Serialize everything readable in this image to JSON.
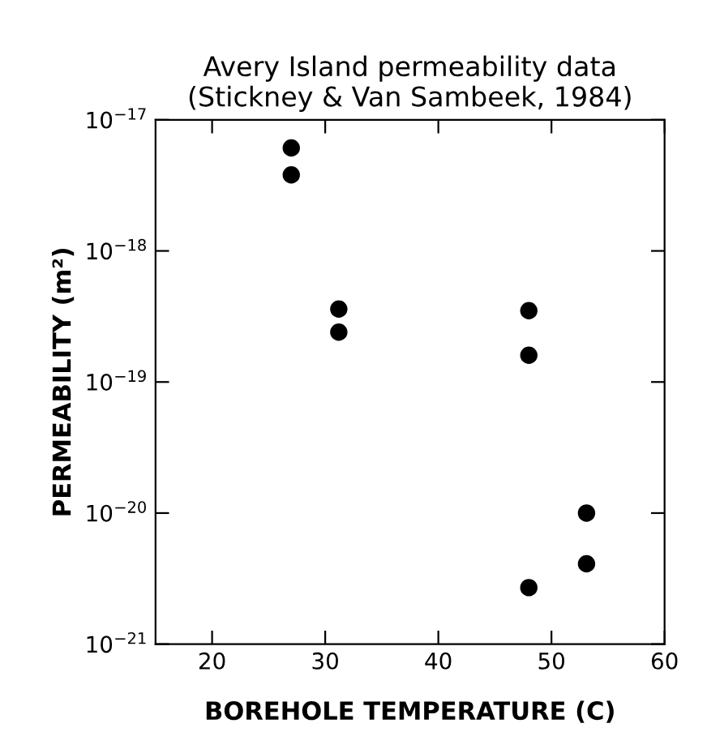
{
  "chart_data": {
    "type": "scatter",
    "title": "Avery Island permeability data\n(Stickney & Van Sambeek, 1984)",
    "xlabel": "BOREHOLE TEMPERATURE (C)",
    "ylabel": "PERMEABILITY (m²)",
    "x": [
      27,
      27,
      31.2,
      31.2,
      48,
      48,
      53.1,
      53.1,
      48
    ],
    "series": [
      {
        "color": "#000000",
        "values": [
          6.1e-18,
          3.8e-18,
          3.6e-19,
          2.4e-19,
          3.5e-19,
          1.6e-19,
          1e-20,
          4.1e-21,
          2.7e-21
        ]
      }
    ],
    "log": "y",
    "marker": "circle",
    "grid": false,
    "xlim": [
      15,
      60
    ],
    "xticks": [
      20,
      30,
      40,
      50,
      60
    ],
    "ylim": [
      1e-21,
      1e-17
    ],
    "yticks": [
      {
        "value": 1e-21,
        "label": "10$^{−21}$"
      },
      {
        "value": 1e-20,
        "label": "10$^{−20}$"
      },
      {
        "value": 1e-19,
        "label": "10$^{−19}$"
      },
      {
        "value": 1e-18,
        "label": "10$^{−18}$"
      },
      {
        "value": 1e-17,
        "label": "10$^{−17}$"
      }
    ]
  }
}
